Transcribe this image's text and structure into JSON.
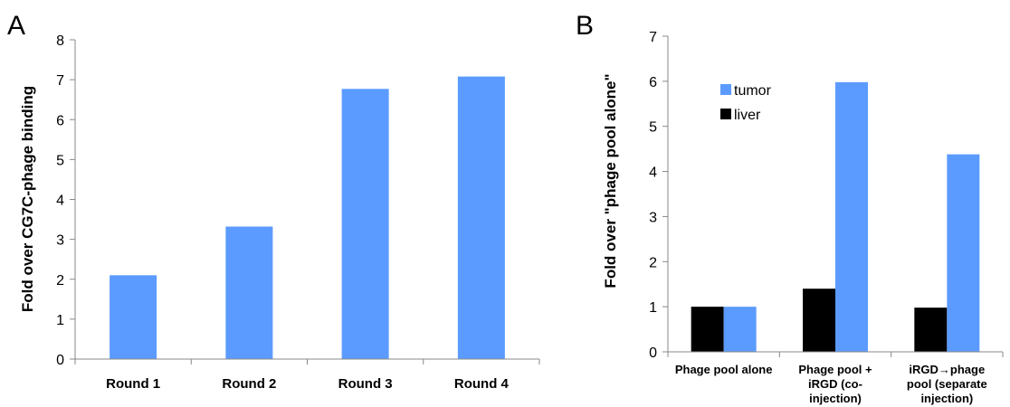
{
  "panels": [
    {
      "letter": "A",
      "ylabel": "Fold over CG7C-phage binding"
    },
    {
      "letter": "B",
      "ylabel": "Fold over \"phage pool alone\""
    }
  ],
  "chart_data": [
    {
      "type": "bar",
      "categories": [
        "Round 1",
        "Round 2",
        "Round 3",
        "Round 4"
      ],
      "values": [
        2.1,
        3.32,
        6.77,
        7.08
      ],
      "ylabel": "Fold over CG7C-phage binding",
      "ylim": [
        0,
        8
      ],
      "yticks": [
        0,
        1,
        2,
        3,
        4,
        5,
        6,
        7,
        8
      ],
      "grid": false,
      "colors": {
        "bar": "#5B9BFF"
      }
    },
    {
      "type": "bar",
      "categories": [
        [
          "Phage pool alone"
        ],
        [
          "Phage pool +",
          "iRGD (co-",
          "injection)"
        ],
        [
          "iRGD→phage",
          "pool (separate",
          "injection)"
        ]
      ],
      "series": [
        {
          "name": "liver",
          "values": [
            1.0,
            1.4,
            0.98
          ],
          "color": "#000000"
        },
        {
          "name": "tumor",
          "values": [
            1.0,
            5.98,
            4.38
          ],
          "color": "#5B9BFF"
        }
      ],
      "legend_order": [
        "tumor",
        "liver"
      ],
      "ylabel": "Fold over \"phage pool alone\"",
      "ylim": [
        0,
        7
      ],
      "yticks": [
        0,
        1,
        2,
        3,
        4,
        5,
        6,
        7
      ],
      "grid": false,
      "legend_position": "top-left"
    }
  ]
}
